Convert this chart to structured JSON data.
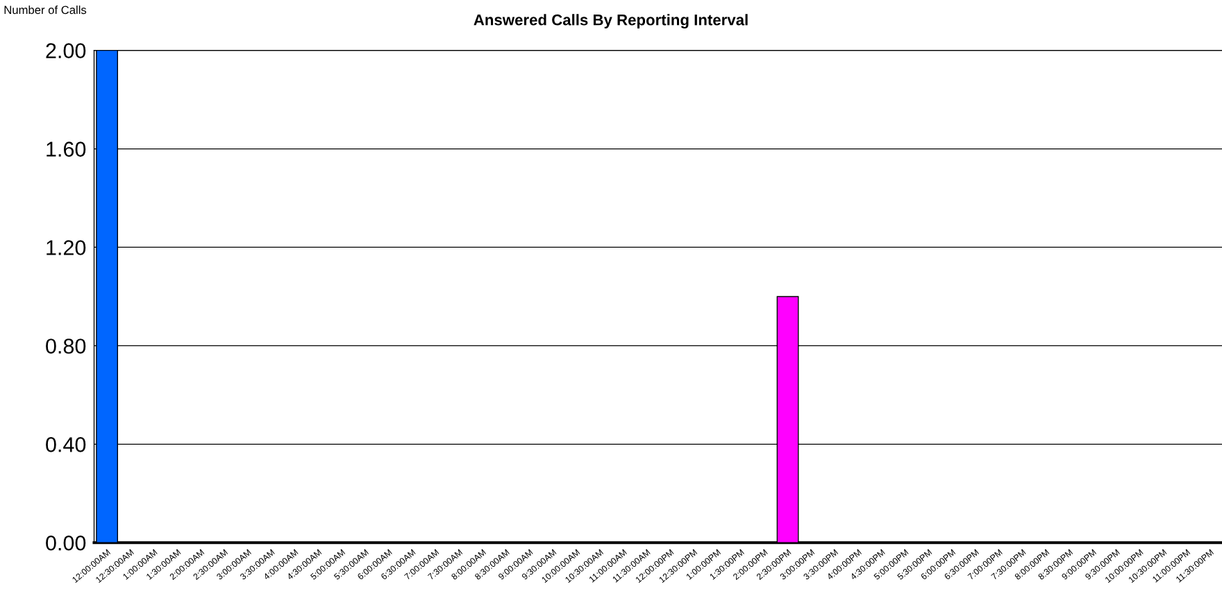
{
  "chart_data": {
    "type": "bar",
    "title": "Answered Calls By Reporting Interval",
    "ylabel": "Number of Calls",
    "categories": [
      "12:00:00AM",
      "12:30:00AM",
      "1:00:00AM",
      "1:30:00AM",
      "2:00:00AM",
      "2:30:00AM",
      "3:00:00AM",
      "3:30:00AM",
      "4:00:00AM",
      "4:30:00AM",
      "5:00:00AM",
      "5:30:00AM",
      "6:00:00AM",
      "6:30:00AM",
      "7:00:00AM",
      "7:30:00AM",
      "8:00:00AM",
      "8:30:00AM",
      "9:00:00AM",
      "9:30:00AM",
      "10:00:00AM",
      "10:30:00AM",
      "11:00:00AM",
      "11:30:00AM",
      "12:00:00PM",
      "12:30:00PM",
      "1:00:00PM",
      "1:30:00PM",
      "2:00:00PM",
      "2:30:00PM",
      "3:00:00PM",
      "3:30:00PM",
      "4:00:00PM",
      "4:30:00PM",
      "5:00:00PM",
      "5:30:00PM",
      "6:00:00PM",
      "6:30:00PM",
      "7:00:00PM",
      "7:30:00PM",
      "8:00:00PM",
      "8:30:00PM",
      "9:00:00PM",
      "9:30:00PM",
      "10:00:00PM",
      "10:30:00PM",
      "11:00:00PM",
      "11:30:00PM"
    ],
    "values": [
      2,
      0,
      0,
      0,
      0,
      0,
      0,
      0,
      0,
      0,
      0,
      0,
      0,
      0,
      0,
      0,
      0,
      0,
      0,
      0,
      0,
      0,
      0,
      0,
      0,
      0,
      0,
      0,
      0,
      1,
      0,
      0,
      0,
      0,
      0,
      0,
      0,
      0,
      0,
      0,
      0,
      0,
      0,
      0,
      0,
      0,
      0,
      0
    ],
    "colors": [
      "#0066ff",
      "#0066ff",
      "#0066ff",
      "#0066ff",
      "#0066ff",
      "#0066ff",
      "#0066ff",
      "#0066ff",
      "#0066ff",
      "#0066ff",
      "#0066ff",
      "#0066ff",
      "#0066ff",
      "#0066ff",
      "#0066ff",
      "#0066ff",
      "#0066ff",
      "#0066ff",
      "#0066ff",
      "#0066ff",
      "#0066ff",
      "#0066ff",
      "#0066ff",
      "#0066ff",
      "#0066ff",
      "#0066ff",
      "#0066ff",
      "#0066ff",
      "#0066ff",
      "#ff00ff",
      "#0066ff",
      "#0066ff",
      "#0066ff",
      "#0066ff",
      "#0066ff",
      "#0066ff",
      "#0066ff",
      "#0066ff",
      "#0066ff",
      "#0066ff",
      "#0066ff",
      "#0066ff",
      "#0066ff",
      "#0066ff",
      "#0066ff",
      "#0066ff",
      "#0066ff",
      "#0066ff"
    ],
    "ylim": [
      0,
      2
    ],
    "yticks": [
      {
        "value": 0,
        "label": "0.00"
      },
      {
        "value": 0.4,
        "label": "0.40"
      },
      {
        "value": 0.8,
        "label": "0.80"
      },
      {
        "value": 1.2,
        "label": "1.20"
      },
      {
        "value": 1.6,
        "label": "1.60"
      },
      {
        "value": 2,
        "label": "2.00"
      }
    ],
    "grid": "y"
  }
}
